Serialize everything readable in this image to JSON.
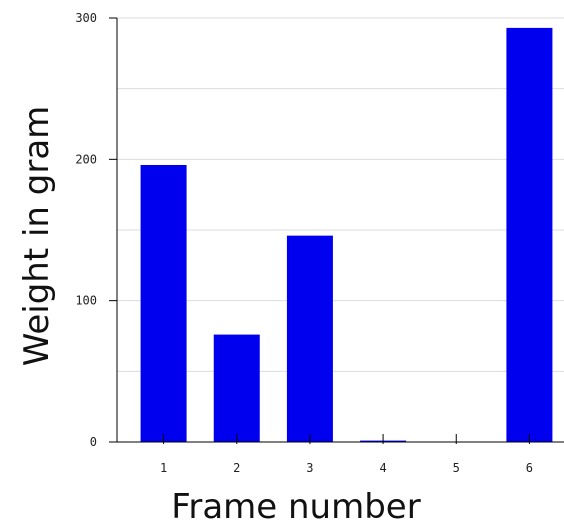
{
  "chart_data": {
    "type": "bar",
    "categories": [
      "1",
      "2",
      "3",
      "4",
      "5",
      "6"
    ],
    "values": [
      196,
      76,
      146,
      1,
      0,
      293
    ],
    "xlabel": "Frame number",
    "ylabel": "Weight in gram",
    "ylim": [
      0,
      300
    ],
    "yticks": [
      "0",
      "100",
      "200",
      "300"
    ],
    "grid": true,
    "legend": "none",
    "colors": {
      "bar": "#0000ee",
      "axis": "#000000",
      "grid": "#dddddd"
    }
  }
}
